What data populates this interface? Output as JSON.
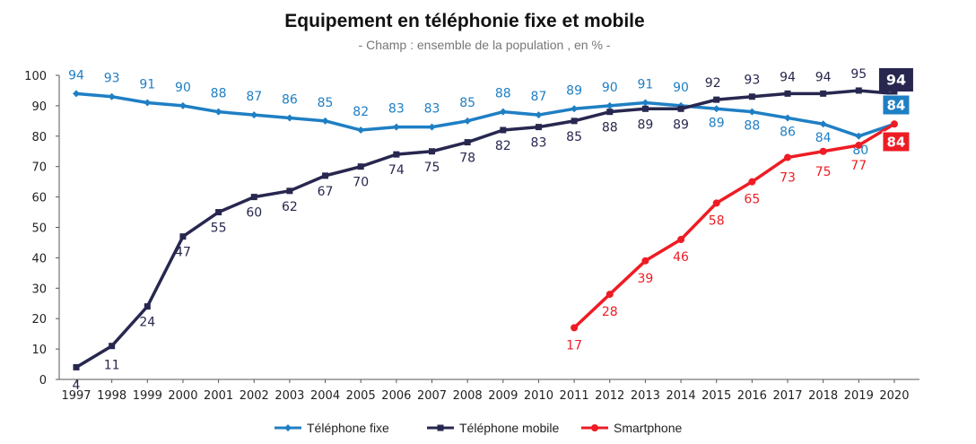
{
  "chart_data": {
    "type": "line",
    "title": "Equipement en téléphonie fixe et mobile",
    "subtitle": "- Champ : ensemble de la population , en % -",
    "xlabel": "",
    "ylabel": "",
    "ylim": [
      0,
      100
    ],
    "yticks": [
      0,
      10,
      20,
      30,
      40,
      50,
      60,
      70,
      80,
      90,
      100
    ],
    "grid": false,
    "legend_position": "bottom",
    "categories": [
      "1997",
      "1998",
      "1999",
      "2000",
      "2001",
      "2002",
      "2003",
      "2004",
      "2005",
      "2006",
      "2007",
      "2008",
      "2009",
      "2010",
      "2011",
      "2012",
      "2013",
      "2014",
      "2015",
      "2016",
      "2017",
      "2018",
      "2019",
      "2020"
    ],
    "series": [
      {
        "name": "Téléphone fixe",
        "color": "#1f7fc4",
        "marker": "diamond",
        "values": [
          94,
          93,
          91,
          90,
          88,
          87,
          86,
          85,
          82,
          83,
          83,
          85,
          88,
          87,
          89,
          90,
          91,
          90,
          89,
          88,
          86,
          84,
          80,
          84
        ],
        "last_label": "84"
      },
      {
        "name": "Téléphone mobile",
        "color": "#27274f",
        "marker": "square",
        "values": [
          4,
          11,
          24,
          47,
          55,
          60,
          62,
          67,
          70,
          74,
          75,
          78,
          82,
          83,
          85,
          88,
          89,
          89,
          92,
          93,
          94,
          94,
          95,
          94
        ],
        "last_label": "94"
      },
      {
        "name": "Smartphone",
        "color": "#ee1c24",
        "marker": "circle",
        "values": [
          null,
          null,
          null,
          null,
          null,
          null,
          null,
          null,
          null,
          null,
          null,
          null,
          null,
          null,
          17,
          28,
          39,
          46,
          58,
          65,
          73,
          75,
          77,
          84
        ],
        "last_label": "84"
      }
    ]
  }
}
